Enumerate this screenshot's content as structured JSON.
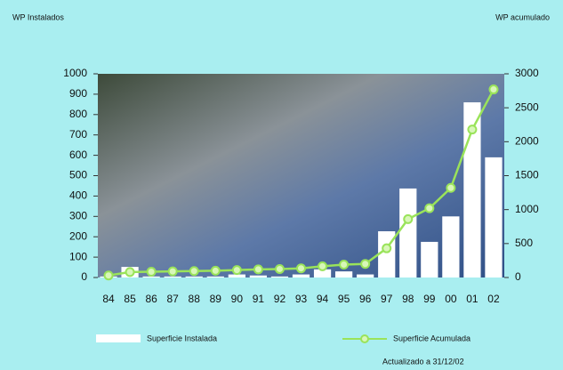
{
  "chart_data": {
    "type": "bar-line",
    "y_label": "WP Instalados",
    "y2_label": "WP acumulado",
    "note": "Actualizado a 31/12/02",
    "categories": [
      "84",
      "85",
      "86",
      "87",
      "88",
      "89",
      "90",
      "91",
      "92",
      "93",
      "94",
      "95",
      "96",
      "97",
      "98",
      "99",
      "00",
      "01",
      "02"
    ],
    "series": [
      {
        "name": "Superficie Instalada",
        "type": "bar",
        "color": "#ffffff",
        "values": [
          5,
          52,
          5,
          5,
          5,
          5,
          15,
          10,
          5,
          15,
          40,
          30,
          15,
          227,
          437,
          175,
          300,
          860,
          590
        ]
      },
      {
        "name": "Superficie Acumulada",
        "type": "line",
        "axis": "y2",
        "color": "#9ae35a",
        "values": [
          30,
          80,
          85,
          90,
          95,
          100,
          110,
          120,
          125,
          135,
          165,
          190,
          200,
          430,
          860,
          1020,
          1320,
          2180,
          2770
        ]
      }
    ],
    "ylim": [
      0,
      1000
    ],
    "yticks": [
      0,
      100,
      200,
      300,
      400,
      500,
      600,
      700,
      800,
      900,
      1000
    ],
    "y2lim": [
      0,
      3000
    ],
    "y2ticks": [
      0,
      500,
      1000,
      1500,
      2000,
      2500,
      3000
    ]
  }
}
